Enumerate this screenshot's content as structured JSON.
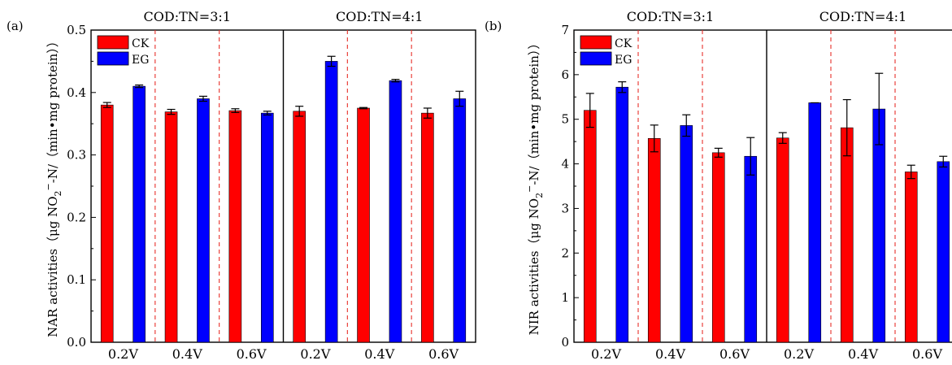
{
  "chart_data": [
    {
      "panel_label": "(a)",
      "type": "bar",
      "ylabel_main": "NAR activities（μg NO",
      "ylabel_sub": "2",
      "ylabel_sup": "−",
      "ylabel_tail": "-N/（min•mg protein））",
      "ylim": [
        0,
        0.5
      ],
      "yticks": [
        "0.0",
        "0.1",
        "0.2",
        "0.3",
        "0.4",
        "0.5"
      ],
      "groups": [
        "COD:TN=3:1",
        "COD:TN=4:1"
      ],
      "categories": [
        "0.2V",
        "0.4V",
        "0.6V",
        "0.2V",
        "0.4V",
        "0.6V"
      ],
      "series": [
        {
          "name": "CK",
          "color": "#ff0000",
          "values": [
            0.38,
            0.369,
            0.371,
            0.37,
            0.375,
            0.367
          ],
          "errors": [
            0.004,
            0.004,
            0.003,
            0.008,
            0.001,
            0.008
          ]
        },
        {
          "name": "EG",
          "color": "#0000ff",
          "values": [
            0.41,
            0.39,
            0.367,
            0.45,
            0.419,
            0.39
          ],
          "errors": [
            0.002,
            0.004,
            0.003,
            0.008,
            0.002,
            0.012
          ]
        }
      ],
      "legend_position": "top-left"
    },
    {
      "panel_label": "(b)",
      "type": "bar",
      "ylabel_main": "NIR activities（μg NO",
      "ylabel_sub": "2",
      "ylabel_sup": "−",
      "ylabel_tail": "-N/（min•mg protein））",
      "ylim": [
        0,
        7
      ],
      "yticks": [
        "0",
        "1",
        "2",
        "3",
        "4",
        "5",
        "6",
        "7"
      ],
      "groups": [
        "COD:TN=3:1",
        "COD:TN=4:1"
      ],
      "categories": [
        "0.2V",
        "0.4V",
        "0.6V",
        "0.2V",
        "0.4V",
        "0.6V"
      ],
      "series": [
        {
          "name": "CK",
          "color": "#ff0000",
          "values": [
            5.2,
            4.57,
            4.25,
            4.58,
            4.81,
            3.82
          ],
          "errors": [
            0.38,
            0.3,
            0.1,
            0.12,
            0.63,
            0.15
          ]
        },
        {
          "name": "EG",
          "color": "#0000ff",
          "values": [
            5.72,
            4.86,
            4.17,
            5.37,
            5.23,
            4.05
          ],
          "errors": [
            0.12,
            0.24,
            0.42,
            0.0,
            0.8,
            0.12
          ]
        }
      ],
      "legend_position": "top-left"
    }
  ]
}
